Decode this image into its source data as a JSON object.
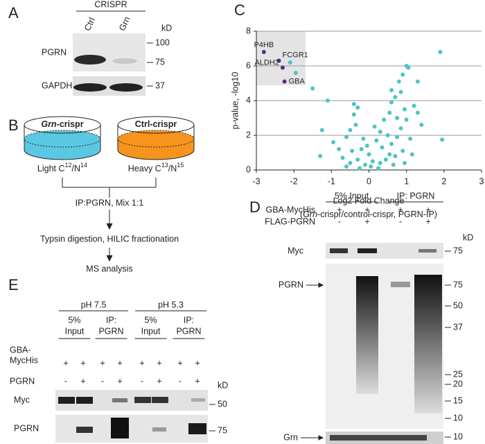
{
  "panel_a": {
    "label": "A",
    "header": "CRISPR",
    "lanes": [
      "Ctrl",
      "Grn"
    ],
    "unit": "kD",
    "rows": [
      {
        "name": "PGRN",
        "markers": [
          100,
          75
        ]
      },
      {
        "name": "GAPDH",
        "markers": [
          37
        ]
      }
    ]
  },
  "panel_b": {
    "label": "B",
    "samples": [
      {
        "name": [
          "Grn",
          "-crispr"
        ],
        "isotope": [
          "Light C",
          "12",
          "/N",
          "14"
        ],
        "color": "#5bc8e3"
      },
      {
        "name": [
          "Ctrl-crispr"
        ],
        "isotope": [
          "Heavy C",
          "13",
          "/N",
          "15"
        ],
        "color": "#f7941d"
      }
    ],
    "steps": [
      "IP:PGRN, Mix 1:1",
      "Typsin digestion, HILIC fractionation",
      "MS analysis"
    ]
  },
  "chart_data": {
    "type": "scatter",
    "label": "C",
    "x_label": "Log2 Fold Change",
    "x_sublabel": [
      "(",
      "Grn",
      "-crispr/control-crispr, PGRN-IP)"
    ],
    "y_label": "p-value, -log10",
    "xlim": [
      -3,
      3
    ],
    "xticks": [
      -3,
      -2,
      -1,
      0,
      1,
      2,
      3
    ],
    "ylim": [
      0,
      8
    ],
    "yticks": [
      0,
      2,
      4,
      6,
      8
    ],
    "grid": true,
    "series": [
      {
        "color": "#5b2a86",
        "x": [
          -2.8,
          -2.4,
          -2.3,
          -2.25
        ],
        "values": [
          6.8,
          6.3,
          5.9,
          5.1
        ],
        "point_labels": [
          "P4HB",
          "FCGR1",
          "ALDH2",
          "GBA"
        ]
      },
      {
        "color": "#4dc4c4",
        "x": [
          -2.1,
          -1.95,
          1.9,
          1.95,
          -1.5,
          -1.1,
          -1.25,
          -0.3,
          1.0,
          1.05,
          0.9,
          0.8,
          1.3,
          0.85,
          0.7,
          -0.4,
          -0.35,
          0.6,
          0.55,
          0.75,
          1.2,
          1.4,
          1.3,
          -0.5,
          -0.6,
          -0.8,
          -0.95,
          -1.3,
          -0.2,
          0,
          0.1,
          0.2,
          0.3,
          0.4,
          0.5,
          0.6,
          0.7,
          0.9,
          1.1,
          -0.1,
          0.05,
          -0.3,
          -0.5,
          0.25,
          0.45,
          0.65,
          -0.7,
          0.15,
          0.35,
          -0.15,
          -0.45,
          0.85,
          1.0,
          -0.25,
          0.55,
          0.95,
          -0.05,
          1.15,
          0.75,
          -0.6,
          0.3,
          -0.4,
          0.6,
          0.95
        ],
        "values": [
          6.2,
          5.6,
          6.8,
          1.75,
          4.7,
          4.0,
          2.3,
          3.6,
          6.0,
          5.9,
          5.5,
          5.1,
          5.1,
          4.5,
          4.2,
          3.2,
          2.6,
          3.9,
          3.3,
          3.0,
          3.7,
          2.6,
          3.3,
          2.3,
          1.9,
          1.2,
          1.6,
          0.8,
          1.2,
          0.9,
          0.5,
          1.7,
          2.2,
          2.9,
          2.0,
          1.5,
          0.8,
          1.1,
          1.8,
          0.3,
          0.2,
          0.6,
          0.4,
          0.1,
          0.6,
          0.3,
          0.7,
          2.5,
          1.3,
          1.8,
          1.1,
          2.4,
          2.9,
          0.1,
          0.9,
          0.4,
          1.4,
          0.9,
          1.9,
          0.2,
          0.4,
          3.8,
          4.6,
          3.5
        ]
      }
    ]
  },
  "panel_d": {
    "label": "D",
    "groups": [
      "5% Input",
      "IP: PGRN"
    ],
    "rows": [
      {
        "name": "GBA-MycHis",
        "signs": [
          "+",
          "+",
          "+",
          "+"
        ]
      },
      {
        "name": "FLAG-PGRN",
        "signs": [
          "-",
          "+",
          "-",
          "+"
        ]
      }
    ],
    "unit": "kD",
    "blots": [
      {
        "name": "Myc",
        "markers": [
          75
        ]
      },
      {
        "name": "PGRN",
        "markers": [
          75,
          50,
          37,
          25,
          20,
          15,
          10
        ]
      },
      {
        "name": "Grn",
        "markers": [
          10
        ]
      }
    ]
  },
  "panel_e": {
    "label": "E",
    "conditions": [
      "pH 7.5",
      "pH 5.3"
    ],
    "groups": [
      [
        "5%",
        "Input"
      ],
      [
        "IP:",
        "PGRN"
      ],
      [
        "5%",
        "Input"
      ],
      [
        "IP:",
        "PGRN"
      ]
    ],
    "rows": [
      {
        "name": [
          "GBA-",
          "MycHis"
        ],
        "signs": [
          "+",
          "+",
          "+",
          "+",
          "+",
          "+",
          "+",
          "+"
        ]
      },
      {
        "name": [
          "PGRN"
        ],
        "signs": [
          "-",
          "+",
          "-",
          "+",
          "-",
          "+",
          "-",
          "+"
        ]
      }
    ],
    "unit": "kD",
    "blots": [
      {
        "name": "Myc",
        "markers": [
          50
        ]
      },
      {
        "name": "PGRN",
        "markers": [
          75
        ]
      }
    ]
  }
}
